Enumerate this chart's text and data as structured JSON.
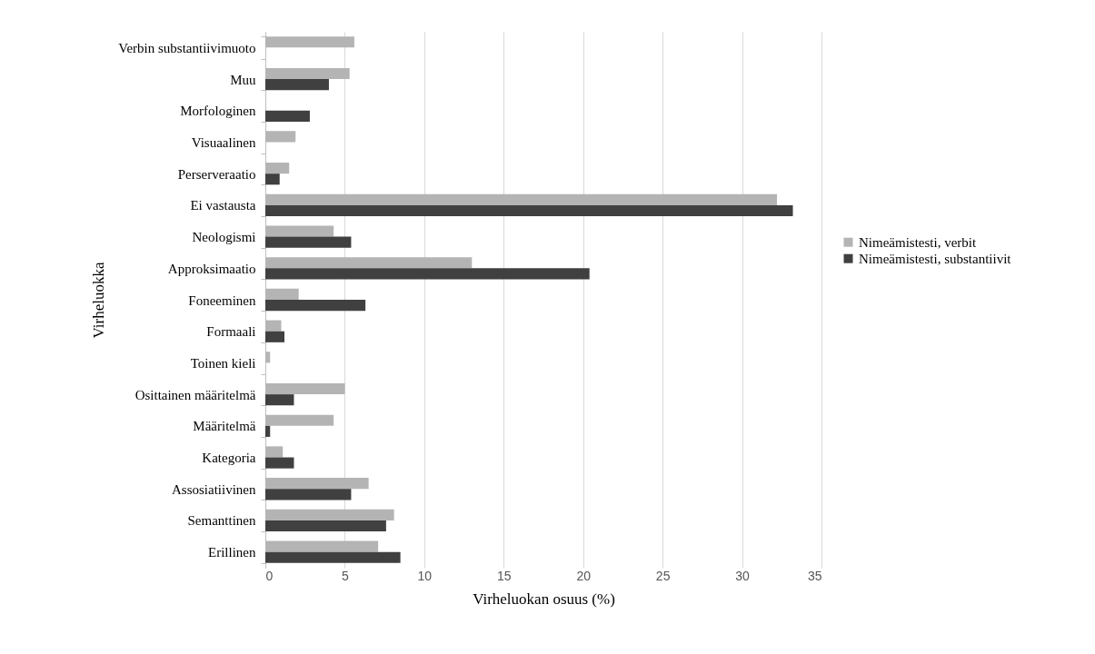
{
  "chart_data": {
    "type": "bar",
    "orientation": "horizontal",
    "xlabel": "Virheluokan osuus (%)",
    "ylabel": "Virheluokka",
    "categories": [
      "Verbin substantiivimuoto",
      "Muu",
      "Morfologinen",
      "Visuaalinen",
      "Perserveraatio",
      "Ei vastausta",
      "Neologismi",
      "Approksimaatio",
      "Foneeminen",
      "Formaali",
      "Toinen kieli",
      "Osittainen määritelmä",
      "Määritelmä",
      "Kategoria",
      "Assosiatiivinen",
      "Semanttinen",
      "Erillinen"
    ],
    "series": [
      {
        "name": "Nimeämistesti, verbit",
        "color": "#b4b4b4",
        "values": [
          5.6,
          5.3,
          null,
          1.9,
          1.5,
          32.2,
          4.3,
          13.0,
          2.1,
          1.0,
          0.3,
          5.0,
          4.3,
          1.1,
          6.5,
          8.1,
          7.1
        ]
      },
      {
        "name": "Nimeämistesti, substantiivit",
        "color": "#404040",
        "values": [
          null,
          4.0,
          2.8,
          null,
          0.9,
          33.2,
          5.4,
          20.4,
          6.3,
          1.2,
          null,
          1.8,
          0.3,
          1.8,
          5.4,
          7.6,
          8.5
        ]
      }
    ],
    "xlim": [
      0,
      35
    ],
    "xticks": [
      0,
      5,
      10,
      15,
      20,
      25,
      30,
      35
    ],
    "grid": "x",
    "legend": "right"
  }
}
